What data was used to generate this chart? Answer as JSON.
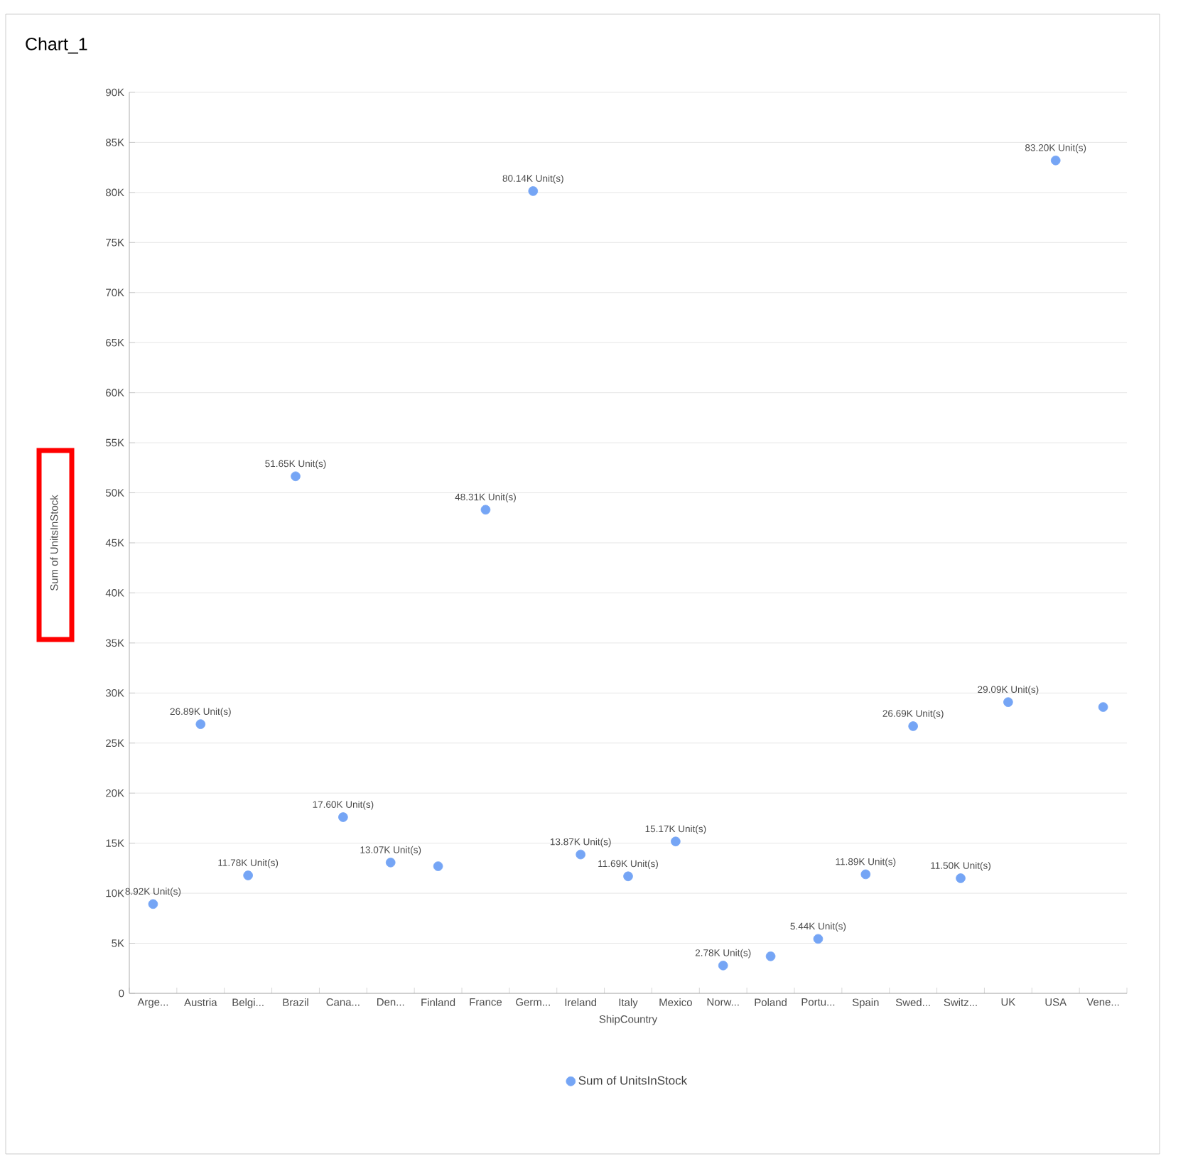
{
  "chart_data": {
    "type": "scatter",
    "title": "Chart_1",
    "xlabel": "ShipCountry",
    "ylabel": "Sum of UnitsInStock",
    "categories": [
      "Arge...",
      "Austria",
      "Belgi...",
      "Brazil",
      "Cana...",
      "Den...",
      "Finland",
      "France",
      "Germ...",
      "Ireland",
      "Italy",
      "Mexico",
      "Norw...",
      "Poland",
      "Portu...",
      "Spain",
      "Swed...",
      "Switz...",
      "UK",
      "USA",
      "Vene..."
    ],
    "series": [
      {
        "name": "Sum of UnitsInStock",
        "color": "#75a5f5",
        "values": [
          8920,
          26890,
          11780,
          51650,
          17600,
          13070,
          12700,
          48310,
          80140,
          13870,
          11690,
          15170,
          2780,
          3700,
          5440,
          11890,
          26690,
          11500,
          29090,
          83200,
          28600
        ],
        "value_labels": [
          "8.92K Unit(s)",
          "26.89K Unit(s)",
          "11.78K Unit(s)",
          "51.65K Unit(s)",
          "17.60K Unit(s)",
          "13.07K Unit(s)",
          null,
          "48.31K Unit(s)",
          "80.14K Unit(s)",
          "13.87K Unit(s)",
          "11.69K Unit(s)",
          "15.17K Unit(s)",
          "2.78K Unit(s)",
          null,
          "5.44K Unit(s)",
          "11.89K Unit(s)",
          "26.69K Unit(s)",
          "11.50K Unit(s)",
          "29.09K Unit(s)",
          "83.20K Unit(s)",
          null
        ]
      }
    ],
    "ylim": [
      0,
      90000
    ],
    "yticks": [
      {
        "value": 0,
        "label": "0"
      },
      {
        "value": 5000,
        "label": "5K"
      },
      {
        "value": 10000,
        "label": "10K"
      },
      {
        "value": 15000,
        "label": "15K"
      },
      {
        "value": 20000,
        "label": "20K"
      },
      {
        "value": 25000,
        "label": "25K"
      },
      {
        "value": 30000,
        "label": "30K"
      },
      {
        "value": 35000,
        "label": "35K"
      },
      {
        "value": 40000,
        "label": "40K"
      },
      {
        "value": 45000,
        "label": "45K"
      },
      {
        "value": 50000,
        "label": "50K"
      },
      {
        "value": 55000,
        "label": "55K"
      },
      {
        "value": 60000,
        "label": "60K"
      },
      {
        "value": 65000,
        "label": "65K"
      },
      {
        "value": 70000,
        "label": "70K"
      },
      {
        "value": 75000,
        "label": "75K"
      },
      {
        "value": 80000,
        "label": "80K"
      },
      {
        "value": 85000,
        "label": "85K"
      },
      {
        "value": 90000,
        "label": "90K"
      }
    ],
    "grid": "y",
    "legend": "bottom",
    "marker": "circle"
  }
}
